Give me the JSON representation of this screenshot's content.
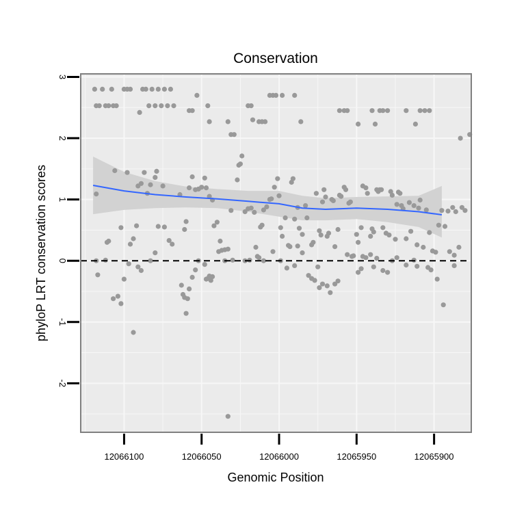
{
  "chart_data": {
    "type": "scatter",
    "title": "Conservation",
    "xlabel": "Genomic Position",
    "ylabel": "phyloP LRT conservation scores",
    "x_reversed": true,
    "xlim": [
      12066128,
      12065876
    ],
    "ylim": [
      -2.8,
      3.05
    ],
    "x_ticks": [
      12066100,
      12066050,
      12066000,
      12065950,
      12065900
    ],
    "x_tick_labels": [
      "12066100",
      "12066050",
      "12066000",
      "12065950",
      "12065900"
    ],
    "y_ticks": [
      -2,
      -1,
      0,
      1,
      2,
      3
    ],
    "y_tick_labels": [
      "-2",
      "-1",
      "0",
      "1",
      "2",
      "3"
    ],
    "reference_line": {
      "y": 0,
      "style": "dashed",
      "color": "#000000"
    },
    "colors": {
      "panel_bg": "#ebebeb",
      "grid": "#f7f7f7",
      "border": "#7f7f7f",
      "points": "#999999",
      "smooth_line": "#3366ff",
      "ribbon": "#d2d2d2"
    },
    "smooth": {
      "method": "loess",
      "x": [
        12066120,
        12066100,
        12066080,
        12066060,
        12066040,
        12066020,
        12066000,
        12065985,
        12065970,
        12065950,
        12065930,
        12065910,
        12065895
      ],
      "y": [
        1.23,
        1.14,
        1.08,
        1.04,
        1.01,
        0.97,
        0.93,
        0.86,
        0.84,
        0.86,
        0.84,
        0.8,
        0.75
      ],
      "lower": [
        0.76,
        0.83,
        0.86,
        0.87,
        0.86,
        0.8,
        0.72,
        0.66,
        0.66,
        0.68,
        0.63,
        0.55,
        0.38
      ],
      "upper": [
        1.7,
        1.45,
        1.3,
        1.21,
        1.17,
        1.14,
        1.14,
        1.06,
        1.02,
        1.04,
        1.05,
        1.06,
        1.22
      ]
    },
    "points": [
      [
        12066119,
        2.8
      ],
      [
        12066118,
        2.53
      ],
      [
        12066116,
        2.53
      ],
      [
        12066114,
        2.8
      ],
      [
        12066112,
        2.53
      ],
      [
        12066110,
        2.53
      ],
      [
        12066108,
        2.8
      ],
      [
        12066107,
        2.53
      ],
      [
        12066105,
        2.53
      ],
      [
        12066100,
        2.8
      ],
      [
        12066098,
        2.8
      ],
      [
        12066096,
        2.8
      ],
      [
        12066088,
        2.8
      ],
      [
        12066086,
        2.8
      ],
      [
        12066084,
        2.53
      ],
      [
        12066082,
        2.8
      ],
      [
        12066080,
        2.53
      ],
      [
        12066078,
        2.8
      ],
      [
        12066076,
        2.53
      ],
      [
        12066074,
        2.8
      ],
      [
        12066072,
        2.53
      ],
      [
        12066070,
        2.8
      ],
      [
        12066068,
        2.53
      ],
      [
        12066090,
        2.42
      ],
      [
        12066058,
        2.45
      ],
      [
        12066056,
        2.45
      ],
      [
        12066053,
        2.7
      ],
      [
        12066046,
        2.53
      ],
      [
        12066045,
        2.27
      ],
      [
        12066033,
        2.27
      ],
      [
        12066031,
        2.06
      ],
      [
        12066029,
        2.06
      ],
      [
        12066020,
        2.53
      ],
      [
        12066018,
        2.53
      ],
      [
        12066017,
        2.3
      ],
      [
        12066013,
        2.27
      ],
      [
        12066011,
        2.27
      ],
      [
        12066009,
        2.27
      ],
      [
        12066006,
        2.7
      ],
      [
        12066004,
        2.7
      ],
      [
        12066002,
        2.7
      ],
      [
        12065998,
        2.7
      ],
      [
        12065990,
        2.7
      ],
      [
        12065986,
        2.27
      ],
      [
        12065961,
        2.45
      ],
      [
        12065958,
        2.45
      ],
      [
        12065956,
        2.45
      ],
      [
        12065949,
        2.23
      ],
      [
        12065938,
        2.23
      ],
      [
        12065940,
        2.45
      ],
      [
        12065935,
        2.45
      ],
      [
        12065933,
        2.45
      ],
      [
        12065930,
        2.45
      ],
      [
        12065918,
        2.45
      ],
      [
        12065912,
        2.23
      ],
      [
        12065909,
        2.45
      ],
      [
        12065906,
        2.45
      ],
      [
        12065903,
        2.45
      ],
      [
        12065877,
        2.06
      ],
      [
        12065883,
        2.0
      ],
      [
        12066118,
        1.09
      ],
      [
        12066111,
        0.3
      ],
      [
        12066110,
        0.32
      ],
      [
        12066106,
        1.47
      ],
      [
        12066102,
        0.54
      ],
      [
        12066098,
        1.44
      ],
      [
        12066096,
        0.27
      ],
      [
        12066094,
        0.36
      ],
      [
        12066092,
        0.57
      ],
      [
        12066091,
        1.22
      ],
      [
        12066089,
        1.26
      ],
      [
        12066087,
        1.44
      ],
      [
        12066085,
        1.1
      ],
      [
        12066083,
        1.24
      ],
      [
        12066080,
        1.36
      ],
      [
        12066079,
        1.46
      ],
      [
        12066078,
        0.56
      ],
      [
        12066075,
        1.22
      ],
      [
        12066074,
        0.55
      ],
      [
        12066071,
        0.33
      ],
      [
        12066069,
        0.27
      ],
      [
        12066064,
        1.08
      ],
      [
        12066061,
        0.51
      ],
      [
        12066060,
        0.64
      ],
      [
        12066058,
        1.19
      ],
      [
        12066056,
        1.37
      ],
      [
        12066054,
        1.16
      ],
      [
        12066052,
        1.17
      ],
      [
        12066050,
        1.2
      ],
      [
        12066048,
        1.35
      ],
      [
        12066047,
        1.19
      ],
      [
        12066045,
        1.05
      ],
      [
        12066043,
        0.99
      ],
      [
        12066042,
        0.57
      ],
      [
        12066040,
        0.63
      ],
      [
        12066038,
        0.32
      ],
      [
        12066035,
        0.18
      ],
      [
        12066033,
        0.19
      ],
      [
        12066031,
        0.82
      ],
      [
        12066027,
        1.32
      ],
      [
        12066026,
        1.56
      ],
      [
        12066025,
        1.58
      ],
      [
        12066024,
        1.71
      ],
      [
        12066022,
        0.8
      ],
      [
        12066020,
        0.85
      ],
      [
        12066018,
        0.86
      ],
      [
        12066016,
        0.79
      ],
      [
        12066015,
        0.22
      ],
      [
        12066014,
        0.07
      ],
      [
        12066012,
        0.55
      ],
      [
        12066011,
        0.58
      ],
      [
        12066010,
        0.83
      ],
      [
        12066008,
        0.88
      ],
      [
        12066006,
        1.0
      ],
      [
        12066005,
        1.01
      ],
      [
        12066003,
        1.2
      ],
      [
        12066001,
        1.34
      ],
      [
        12066000,
        1.06
      ],
      [
        12065999,
        0.54
      ],
      [
        12065998,
        0.4
      ],
      [
        12065996,
        0.7
      ],
      [
        12065994,
        0.25
      ],
      [
        12065993,
        0.23
      ],
      [
        12065992,
        1.28
      ],
      [
        12065991,
        1.34
      ],
      [
        12065990,
        0.68
      ],
      [
        12065988,
        0.87
      ],
      [
        12065987,
        0.53
      ],
      [
        12065985,
        0.43
      ],
      [
        12065983,
        0.9
      ],
      [
        12065982,
        0.7
      ],
      [
        12065979,
        0.26
      ],
      [
        12065978,
        0.3
      ],
      [
        12065976,
        1.1
      ],
      [
        12065974,
        0.49
      ],
      [
        12065973,
        0.42
      ],
      [
        12065972,
        0.96
      ],
      [
        12065971,
        1.16
      ],
      [
        12065970,
        1.04
      ],
      [
        12065969,
        0.4
      ],
      [
        12065968,
        0.45
      ],
      [
        12065966,
        1.0
      ],
      [
        12065965,
        0.98
      ],
      [
        12065964,
        0.23
      ],
      [
        12065962,
        0.51
      ],
      [
        12065961,
        1.07
      ],
      [
        12065960,
        1.05
      ],
      [
        12065958,
        1.2
      ],
      [
        12065957,
        1.16
      ],
      [
        12065956,
        0.1
      ],
      [
        12065955,
        0.94
      ],
      [
        12065954,
        0.96
      ],
      [
        12065953,
        0.07
      ],
      [
        12065952,
        0.08
      ],
      [
        12065950,
        0.43
      ],
      [
        12065949,
        0.3
      ],
      [
        12065947,
        0.54
      ],
      [
        12065946,
        1.22
      ],
      [
        12065944,
        1.19
      ],
      [
        12065943,
        1.1
      ],
      [
        12065941,
        0.4
      ],
      [
        12065940,
        0.52
      ],
      [
        12065939,
        0.47
      ],
      [
        12065937,
        1.16
      ],
      [
        12065936,
        1.13
      ],
      [
        12065935,
        1.16
      ],
      [
        12065934,
        1.16
      ],
      [
        12065933,
        0.54
      ],
      [
        12065931,
        0.45
      ],
      [
        12065929,
        0.42
      ],
      [
        12065928,
        1.13
      ],
      [
        12065927,
        1.07
      ],
      [
        12065925,
        0.35
      ],
      [
        12065924,
        0.92
      ],
      [
        12065923,
        1.12
      ],
      [
        12065922,
        1.1
      ],
      [
        12065921,
        0.9
      ],
      [
        12065920,
        0.85
      ],
      [
        12065918,
        0.36
      ],
      [
        12065916,
        0.95
      ],
      [
        12065915,
        0.48
      ],
      [
        12065913,
        0.9
      ],
      [
        12065911,
        0.26
      ],
      [
        12065910,
        0.86
      ],
      [
        12065909,
        0.99
      ],
      [
        12065907,
        0.22
      ],
      [
        12065905,
        0.83
      ],
      [
        12065903,
        0.46
      ],
      [
        12065901,
        0.16
      ],
      [
        12065899,
        0.14
      ],
      [
        12065897,
        0.58
      ],
      [
        12065895,
        0.82
      ],
      [
        12065893,
        0.56
      ],
      [
        12065891,
        0.81
      ],
      [
        12065888,
        0.87
      ],
      [
        12065886,
        0.8
      ],
      [
        12065884,
        0.22
      ],
      [
        12065882,
        0.87
      ],
      [
        12065880,
        0.82
      ],
      [
        12065887,
        0.09
      ],
      [
        12066118,
        0.0
      ],
      [
        12066117,
        -0.23
      ],
      [
        12066112,
        0.01
      ],
      [
        12066107,
        -0.62
      ],
      [
        12066104,
        -0.58
      ],
      [
        12066102,
        -0.7
      ],
      [
        12066100,
        -0.3
      ],
      [
        12066097,
        -0.05
      ],
      [
        12066094,
        -1.17
      ],
      [
        12066091,
        -0.1
      ],
      [
        12066089,
        -0.16
      ],
      [
        12066083,
        0.0
      ],
      [
        12066080,
        0.13
      ],
      [
        12066063,
        -0.4
      ],
      [
        12066062,
        -0.55
      ],
      [
        12066061,
        -0.6
      ],
      [
        12066060,
        -0.86
      ],
      [
        12066059,
        -0.62
      ],
      [
        12066058,
        -0.46
      ],
      [
        12066056,
        -0.27
      ],
      [
        12066054,
        -0.15
      ],
      [
        12066052,
        0.0
      ],
      [
        12066048,
        -0.06
      ],
      [
        12066047,
        -0.3
      ],
      [
        12066046,
        -0.29
      ],
      [
        12066045,
        -0.25
      ],
      [
        12066044,
        -0.32
      ],
      [
        12066043,
        -0.26
      ],
      [
        12066039,
        0.15
      ],
      [
        12066037,
        0.17
      ],
      [
        12066035,
        0.0
      ],
      [
        12066033,
        -2.54
      ],
      [
        12066030,
        0.01
      ],
      [
        12066022,
        0.0
      ],
      [
        12066019,
        0.01
      ],
      [
        12066013,
        0.05
      ],
      [
        12066010,
        0.0
      ],
      [
        12066004,
        0.15
      ],
      [
        12065999,
        0.0
      ],
      [
        12065995,
        -0.12
      ],
      [
        12065990,
        -0.08
      ],
      [
        12065988,
        0.24
      ],
      [
        12065985,
        0.13
      ],
      [
        12065981,
        -0.24
      ],
      [
        12065979,
        -0.29
      ],
      [
        12065977,
        -0.32
      ],
      [
        12065975,
        -0.1
      ],
      [
        12065974,
        -0.44
      ],
      [
        12065972,
        -0.38
      ],
      [
        12065969,
        -0.41
      ],
      [
        12065967,
        -0.52
      ],
      [
        12065964,
        -0.38
      ],
      [
        12065962,
        -0.33
      ],
      [
        12065949,
        -0.19
      ],
      [
        12065947,
        -0.13
      ],
      [
        12065946,
        0.07
      ],
      [
        12065944,
        0.05
      ],
      [
        12065941,
        0.1
      ],
      [
        12065939,
        -0.1
      ],
      [
        12065937,
        0.04
      ],
      [
        12065933,
        -0.16
      ],
      [
        12065930,
        -0.19
      ],
      [
        12065927,
        0.0
      ],
      [
        12065924,
        0.05
      ],
      [
        12065918,
        -0.07
      ],
      [
        12065913,
        0.01
      ],
      [
        12065911,
        -0.09
      ],
      [
        12065904,
        -0.11
      ],
      [
        12065902,
        -0.15
      ],
      [
        12065898,
        -0.3
      ],
      [
        12065894,
        -0.72
      ],
      [
        12065887,
        -0.08
      ],
      [
        12065890,
        0.15
      ]
    ]
  }
}
